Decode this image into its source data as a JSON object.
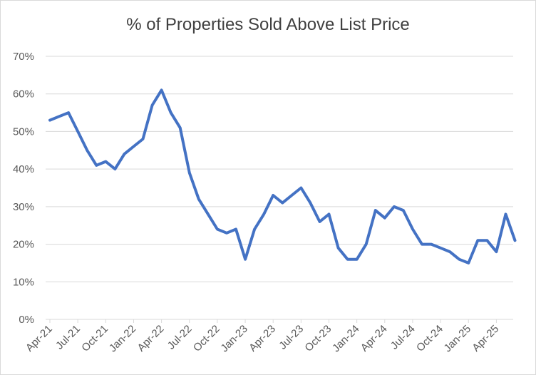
{
  "chart_data": {
    "type": "line",
    "title": "% of Properties Sold Above List Price",
    "xlabel": "",
    "ylabel": "",
    "ylim": [
      0,
      70
    ],
    "y_ticks": [
      "0%",
      "10%",
      "20%",
      "30%",
      "40%",
      "50%",
      "60%",
      "70%"
    ],
    "x_tick_labels": [
      "Apr-21",
      "Jul-21",
      "Oct-21",
      "Jan-22",
      "Apr-22",
      "Jul-22",
      "Oct-22",
      "Jan-23",
      "Apr-23",
      "Jul-23",
      "Oct-23",
      "Jan-24",
      "Apr-24",
      "Jul-24",
      "Oct-24",
      "Jan-25",
      "Apr-25"
    ],
    "grid": true,
    "line_color": "#4472c4",
    "series": [
      {
        "values": [
          53,
          54,
          55,
          50,
          45,
          41,
          42,
          40,
          44,
          46,
          48,
          57,
          61,
          55,
          51,
          39,
          32,
          28,
          24,
          23,
          24,
          16,
          24,
          28,
          33,
          31,
          33,
          35,
          31,
          26,
          28,
          19,
          16,
          16,
          20,
          29,
          27,
          30,
          29,
          24,
          20,
          20,
          19,
          18,
          16,
          15,
          21,
          21,
          18,
          28,
          21
        ]
      }
    ]
  }
}
